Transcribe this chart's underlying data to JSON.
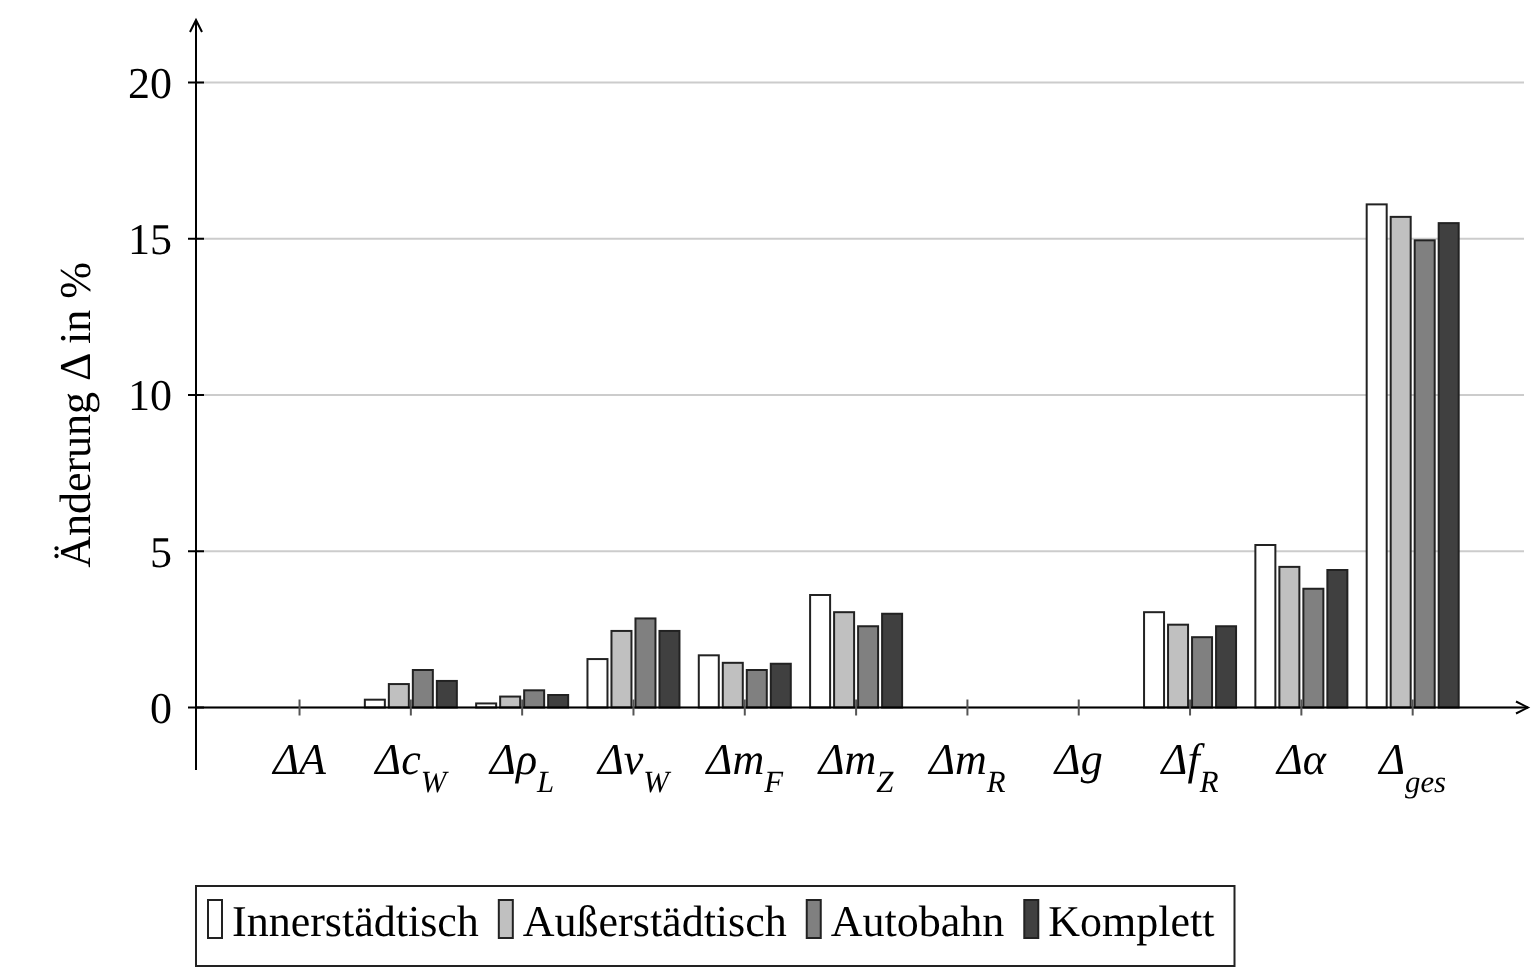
{
  "chart_data": {
    "type": "bar",
    "ylabel": "Änderung Δ in %",
    "categories": [
      "ΔA",
      "Δc$_{W}$",
      "Δρ$_{L}$",
      "Δv$_{W}$",
      "Δm$_{F}$",
      "Δm$_{Z}$",
      "Δm$_{R}$",
      "Δg",
      "Δf$_{R}$",
      "Δα",
      "Δ$_{ges}$"
    ],
    "series": [
      {
        "name": "Innerstädtisch",
        "color": "#ffffff",
        "values": [
          0,
          0.25,
          0.13,
          1.55,
          1.67,
          3.6,
          0,
          0,
          3.05,
          5.2,
          16.1
        ]
      },
      {
        "name": "Außerstädtisch",
        "color": "#c0c0c0",
        "values": [
          0,
          0.75,
          0.35,
          2.45,
          1.43,
          3.05,
          0,
          0,
          2.65,
          4.5,
          15.7
        ]
      },
      {
        "name": "Autobahn",
        "color": "#808080",
        "values": [
          0,
          1.2,
          0.55,
          2.85,
          1.2,
          2.6,
          0,
          0,
          2.25,
          3.8,
          14.95
        ]
      },
      {
        "name": "Komplett",
        "color": "#404040",
        "values": [
          0,
          0.85,
          0.4,
          2.45,
          1.4,
          3.0,
          0,
          0,
          2.6,
          4.4,
          15.5
        ]
      }
    ],
    "ylim": [
      -2,
      22
    ],
    "yticks": [
      0,
      5,
      10,
      15,
      20
    ],
    "grid": "y",
    "legend": "bottom"
  }
}
